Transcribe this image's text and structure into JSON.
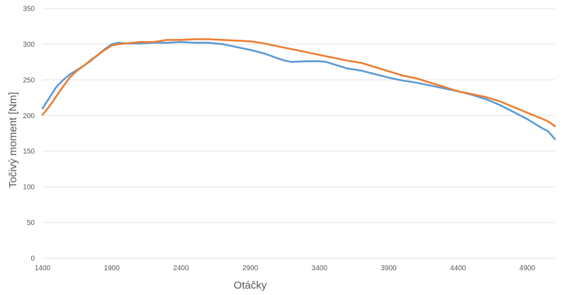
{
  "chart_data": {
    "type": "line",
    "title": "",
    "xlabel": "Otáčky",
    "ylabel": "Točivý moment  [Nm]",
    "xlim": [
      1400,
      5100
    ],
    "ylim": [
      0,
      350
    ],
    "xticks": [
      1400,
      1900,
      2400,
      2900,
      3400,
      3900,
      4400,
      4900
    ],
    "yticks": [
      0,
      50,
      100,
      150,
      200,
      250,
      300,
      350
    ],
    "grid": "horizontal",
    "legend": "none",
    "series": [
      {
        "color": "#5b9bd5",
        "x": [
          1400,
          1450,
          1500,
          1550,
          1600,
          1650,
          1700,
          1750,
          1800,
          1850,
          1900,
          1950,
          2000,
          2100,
          2200,
          2300,
          2400,
          2500,
          2600,
          2700,
          2800,
          2900,
          3000,
          3100,
          3150,
          3200,
          3300,
          3400,
          3450,
          3500,
          3600,
          3700,
          3800,
          3900,
          4000,
          4100,
          4200,
          4300,
          4400,
          4500,
          4600,
          4700,
          4800,
          4900,
          5000,
          5050,
          5100
        ],
        "y": [
          210,
          225,
          240,
          250,
          258,
          264,
          270,
          277,
          285,
          293,
          300,
          302,
          301,
          301,
          302,
          302,
          303,
          302,
          302,
          300,
          296,
          292,
          287,
          280,
          277,
          275,
          276,
          276,
          275,
          272,
          266,
          263,
          258,
          253,
          249,
          246,
          242,
          238,
          234,
          229,
          223,
          215,
          205,
          195,
          183,
          178,
          167
        ]
      },
      {
        "color": "#ed7d31",
        "x": [
          1400,
          1450,
          1500,
          1550,
          1600,
          1650,
          1700,
          1750,
          1800,
          1850,
          1900,
          1950,
          2000,
          2100,
          2200,
          2300,
          2400,
          2500,
          2600,
          2700,
          2800,
          2900,
          3000,
          3100,
          3200,
          3300,
          3400,
          3500,
          3600,
          3700,
          3800,
          3900,
          4000,
          4100,
          4200,
          4300,
          4400,
          4500,
          4600,
          4700,
          4800,
          4900,
          5000,
          5050,
          5100
        ],
        "y": [
          201,
          213,
          227,
          241,
          254,
          263,
          270,
          278,
          285,
          292,
          298,
          300,
          301,
          303,
          303,
          306,
          306,
          307,
          307,
          306,
          305,
          304,
          301,
          297,
          293,
          289,
          285,
          281,
          277,
          274,
          268,
          262,
          256,
          252,
          246,
          240,
          234,
          230,
          226,
          220,
          212,
          204,
          196,
          192,
          185
        ]
      }
    ]
  }
}
